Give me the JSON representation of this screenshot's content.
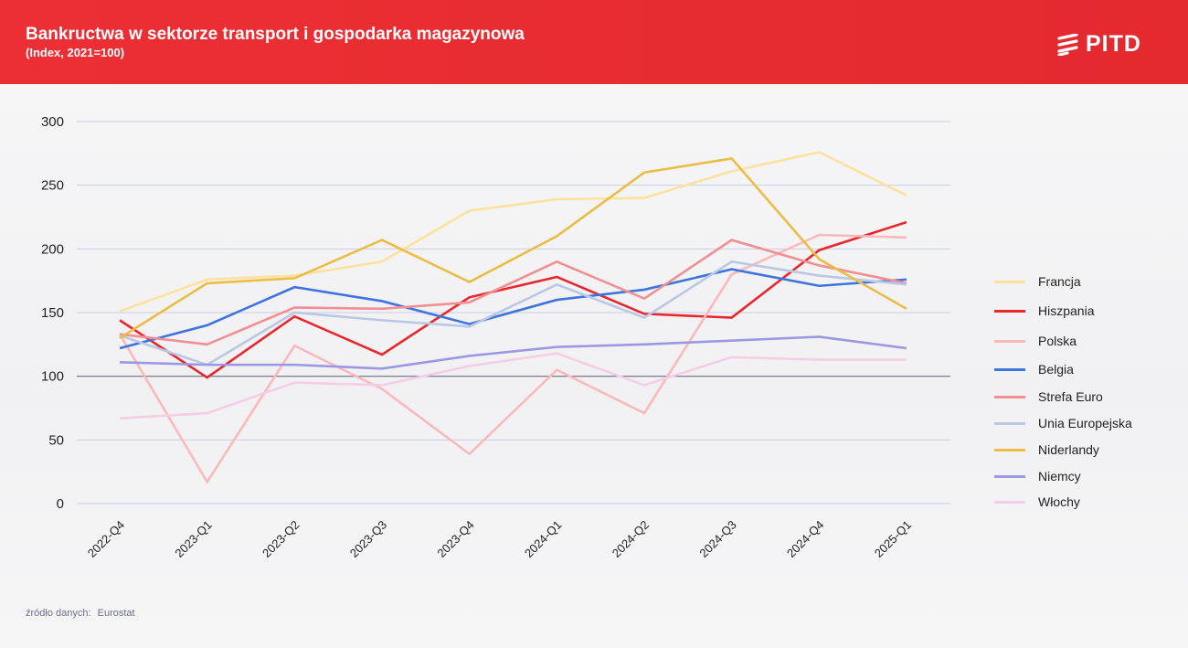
{
  "header": {
    "title": "Bankructwa w sektorze transport i gospodarka magazynowa",
    "subtitle": "(Index, 2021=100)",
    "logo_text": "PITD"
  },
  "footer": {
    "source_label": "źródło danych:",
    "source_value": "Eurostat"
  },
  "chart_data": {
    "type": "line",
    "title": "Bankructwa w sektorze transport i gospodarka magazynowa",
    "subtitle": "(Index, 2021=100)",
    "xlabel": "",
    "ylabel": "",
    "ylim": [
      0,
      300
    ],
    "yticks": [
      0,
      50,
      100,
      150,
      200,
      250,
      300
    ],
    "reference_line": 100,
    "grid": true,
    "legend_position": "right",
    "categories": [
      "2022-Q4",
      "2023-Q1",
      "2023-Q2",
      "2023-Q3",
      "2023-Q4",
      "2024-Q1",
      "2024-Q2",
      "2024-Q3",
      "2024-Q4",
      "2025-Q1"
    ],
    "series": [
      {
        "name": "Francja",
        "color": "#fde29e",
        "values": [
          151,
          176,
          179,
          190,
          230,
          239,
          240,
          261,
          276,
          242
        ]
      },
      {
        "name": "Hiszpania",
        "color": "#e8262c",
        "values": [
          144,
          99,
          147,
          117,
          162,
          178,
          149,
          146,
          199,
          221
        ]
      },
      {
        "name": "Polska",
        "color": "#fbb9ba",
        "values": [
          133,
          17,
          124,
          90,
          39,
          105,
          71,
          180,
          211,
          209
        ]
      },
      {
        "name": "Belgia",
        "color": "#3d74de",
        "values": [
          122,
          140,
          170,
          159,
          141,
          160,
          168,
          184,
          171,
          176
        ]
      },
      {
        "name": "Strefa Euro",
        "color": "#f38f92",
        "values": [
          133,
          125,
          154,
          153,
          158,
          190,
          161,
          207,
          187,
          173
        ]
      },
      {
        "name": "Unia Europejska",
        "color": "#b9c8e4",
        "values": [
          132,
          109,
          150,
          144,
          139,
          172,
          146,
          190,
          179,
          172
        ]
      },
      {
        "name": "Niderlandy",
        "color": "#ebbd45",
        "values": [
          130,
          173,
          177,
          207,
          174,
          210,
          260,
          271,
          192,
          153
        ]
      },
      {
        "name": "Niemcy",
        "color": "#9b98e2",
        "values": [
          111,
          109,
          109,
          106,
          116,
          123,
          125,
          128,
          131,
          122
        ]
      },
      {
        "name": "Włochy",
        "color": "#f5cde6",
        "values": [
          67,
          71,
          95,
          93,
          108,
          118,
          93,
          115,
          113,
          113
        ]
      }
    ]
  }
}
